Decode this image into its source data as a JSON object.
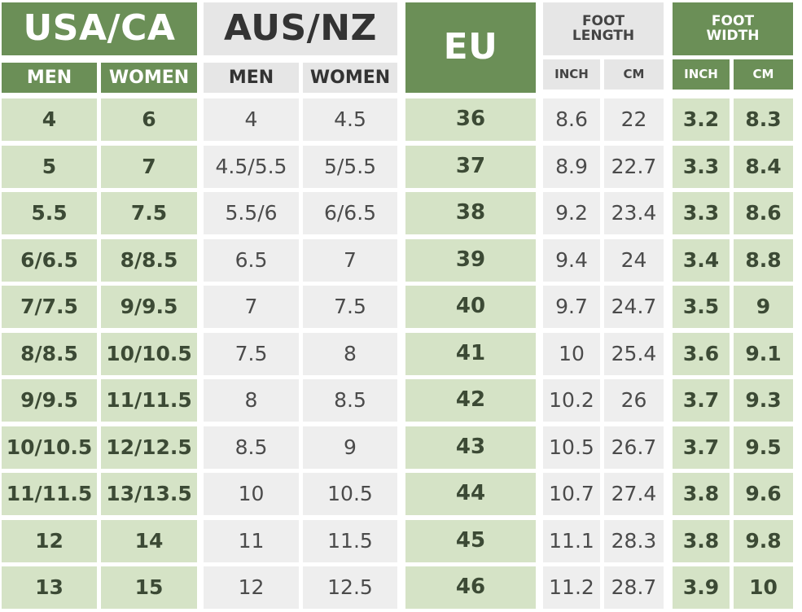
{
  "headers": {
    "usa_ca": "USA/CA",
    "aus_nz": "AUS/NZ",
    "eu": "EU",
    "foot_length": "FOOT\nLENGTH",
    "foot_width": "FOOT\nWIDTH",
    "men": "MEN",
    "women": "WOMEN",
    "inch": "INCH",
    "cm": "CM"
  },
  "rows": [
    {
      "usa_men": "4",
      "usa_women": "6",
      "aus_men": "4",
      "aus_women": "4.5",
      "eu": "36",
      "len_inch": "8.6",
      "len_cm": "22",
      "wid_inch": "3.2",
      "wid_cm": "8.3"
    },
    {
      "usa_men": "5",
      "usa_women": "7",
      "aus_men": "4.5/5.5",
      "aus_women": "5/5.5",
      "eu": "37",
      "len_inch": "8.9",
      "len_cm": "22.7",
      "wid_inch": "3.3",
      "wid_cm": "8.4"
    },
    {
      "usa_men": "5.5",
      "usa_women": "7.5",
      "aus_men": "5.5/6",
      "aus_women": "6/6.5",
      "eu": "38",
      "len_inch": "9.2",
      "len_cm": "23.4",
      "wid_inch": "3.3",
      "wid_cm": "8.6"
    },
    {
      "usa_men": "6/6.5",
      "usa_women": "8/8.5",
      "aus_men": "6.5",
      "aus_women": "7",
      "eu": "39",
      "len_inch": "9.4",
      "len_cm": "24",
      "wid_inch": "3.4",
      "wid_cm": "8.8"
    },
    {
      "usa_men": "7/7.5",
      "usa_women": "9/9.5",
      "aus_men": "7",
      "aus_women": "7.5",
      "eu": "40",
      "len_inch": "9.7",
      "len_cm": "24.7",
      "wid_inch": "3.5",
      "wid_cm": "9"
    },
    {
      "usa_men": "8/8.5",
      "usa_women": "10/10.5",
      "aus_men": "7.5",
      "aus_women": "8",
      "eu": "41",
      "len_inch": "10",
      "len_cm": "25.4",
      "wid_inch": "3.6",
      "wid_cm": "9.1"
    },
    {
      "usa_men": "9/9.5",
      "usa_women": "11/11.5",
      "aus_men": "8",
      "aus_women": "8.5",
      "eu": "42",
      "len_inch": "10.2",
      "len_cm": "26",
      "wid_inch": "3.7",
      "wid_cm": "9.3"
    },
    {
      "usa_men": "10/10.5",
      "usa_women": "12/12.5",
      "aus_men": "8.5",
      "aus_women": "9",
      "eu": "43",
      "len_inch": "10.5",
      "len_cm": "26.7",
      "wid_inch": "3.7",
      "wid_cm": "9.5"
    },
    {
      "usa_men": "11/11.5",
      "usa_women": "13/13.5",
      "aus_men": "10",
      "aus_women": "10.5",
      "eu": "44",
      "len_inch": "10.7",
      "len_cm": "27.4",
      "wid_inch": "3.8",
      "wid_cm": "9.6"
    },
    {
      "usa_men": "12",
      "usa_women": "14",
      "aus_men": "11",
      "aus_women": "11.5",
      "eu": "45",
      "len_inch": "11.1",
      "len_cm": "28.3",
      "wid_inch": "3.8",
      "wid_cm": "9.8"
    },
    {
      "usa_men": "13",
      "usa_women": "15",
      "aus_men": "12",
      "aus_women": "12.5",
      "eu": "46",
      "len_inch": "11.2",
      "len_cm": "28.7",
      "wid_inch": "3.9",
      "wid_cm": "10"
    }
  ],
  "colors": {
    "dark_green": "#6b8f57",
    "light_green": "#d5e3c6",
    "light_gray": "#eeeeee",
    "header_gray": "#e6e6e6"
  }
}
